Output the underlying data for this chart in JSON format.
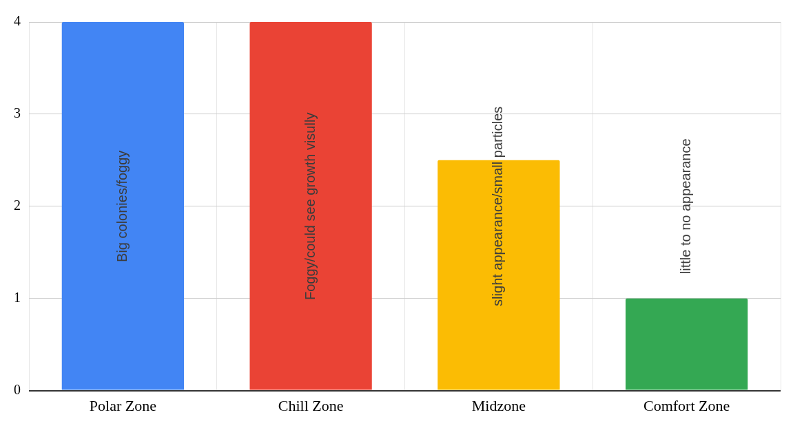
{
  "chart_data": {
    "type": "bar",
    "categories": [
      "Polar Zone",
      "Chill Zone",
      "Midzone",
      "Comfort Zone"
    ],
    "values": [
      4,
      4,
      2.5,
      1
    ],
    "colors": [
      "#4285f4",
      "#ea4335",
      "#fbbc04",
      "#34a853"
    ],
    "ylim": [
      0,
      4
    ],
    "yticks": [
      0,
      1,
      2,
      3,
      4
    ],
    "grid": true,
    "legend": false,
    "annotations": [
      "Big colonies/foggy",
      "Foggy/could see growth visully",
      "slight appearance/small particles",
      "little to no appearance"
    ]
  }
}
